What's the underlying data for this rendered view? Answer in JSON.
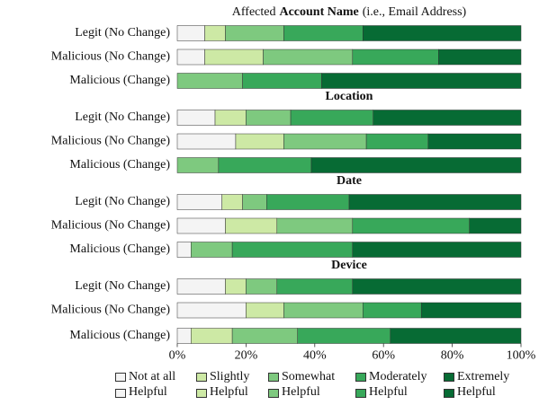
{
  "chart_data": [
    {
      "type": "stacked-bar",
      "title": [
        "Affected",
        "Account Name",
        "(i.e., Email Address)"
      ],
      "categories": [
        "Legit (No Change)",
        "Malicious (No Change)",
        "Malicious (Change)"
      ],
      "xlim": [
        0,
        100
      ],
      "series": [
        {
          "name": "Not at all Helpful",
          "color": "#f4f4f4",
          "values": [
            8,
            8,
            0
          ]
        },
        {
          "name": "Slightly Helpful",
          "color": "#cde9a5",
          "values": [
            6,
            17,
            0
          ]
        },
        {
          "name": "Somewhat Helpful",
          "color": "#7ec97f",
          "values": [
            17,
            26,
            19
          ]
        },
        {
          "name": "Moderately Helpful",
          "color": "#38a85a",
          "values": [
            23,
            25,
            23
          ]
        },
        {
          "name": "Extremely Helpful",
          "color": "#076b34",
          "values": [
            46,
            24,
            58
          ]
        }
      ]
    },
    {
      "type": "stacked-bar",
      "title": "Location",
      "categories": [
        "Legit (No Change)",
        "Malicious (No Change)",
        "Malicious (Change)"
      ],
      "xlim": [
        0,
        100
      ],
      "series": [
        {
          "name": "Not at all Helpful",
          "color": "#f4f4f4",
          "values": [
            11,
            17,
            0
          ]
        },
        {
          "name": "Slightly Helpful",
          "color": "#cde9a5",
          "values": [
            9,
            14,
            0
          ]
        },
        {
          "name": "Somewhat Helpful",
          "color": "#7ec97f",
          "values": [
            13,
            24,
            12
          ]
        },
        {
          "name": "Moderately Helpful",
          "color": "#38a85a",
          "values": [
            24,
            18,
            27
          ]
        },
        {
          "name": "Extremely Helpful",
          "color": "#076b34",
          "values": [
            43,
            27,
            61
          ]
        }
      ]
    },
    {
      "type": "stacked-bar",
      "title": "Date",
      "categories": [
        "Legit (No Change)",
        "Malicious (No Change)",
        "Malicious (Change)"
      ],
      "xlim": [
        0,
        100
      ],
      "series": [
        {
          "name": "Not at all Helpful",
          "color": "#f4f4f4",
          "values": [
            13,
            14,
            4
          ]
        },
        {
          "name": "Slightly Helpful",
          "color": "#cde9a5",
          "values": [
            6,
            15,
            0
          ]
        },
        {
          "name": "Somewhat Helpful",
          "color": "#7ec97f",
          "values": [
            7,
            22,
            12
          ]
        },
        {
          "name": "Moderately Helpful",
          "color": "#38a85a",
          "values": [
            24,
            34,
            35
          ]
        },
        {
          "name": "Extremely Helpful",
          "color": "#076b34",
          "values": [
            50,
            15,
            49
          ]
        }
      ]
    },
    {
      "type": "stacked-bar",
      "title": "Device",
      "categories": [
        "Legit (No Change)",
        "Malicious (No Change)",
        "Malicious (Change)"
      ],
      "xlim": [
        0,
        100
      ],
      "xticks": [
        {
          "value": 0,
          "label": "0%"
        },
        {
          "value": 20,
          "label": "20%"
        },
        {
          "value": 40,
          "label": "40%"
        },
        {
          "value": 60,
          "label": "60%"
        },
        {
          "value": 80,
          "label": "80%"
        },
        {
          "value": 100,
          "label": "100%"
        }
      ],
      "series": [
        {
          "name": "Not at all Helpful",
          "color": "#f4f4f4",
          "values": [
            14,
            20,
            4
          ]
        },
        {
          "name": "Slightly Helpful",
          "color": "#cde9a5",
          "values": [
            6,
            11,
            12
          ]
        },
        {
          "name": "Somewhat Helpful",
          "color": "#7ec97f",
          "values": [
            9,
            23,
            19
          ]
        },
        {
          "name": "Moderately Helpful",
          "color": "#38a85a",
          "values": [
            22,
            17,
            27
          ]
        },
        {
          "name": "Extremely Helpful",
          "color": "#076b34",
          "values": [
            49,
            29,
            38
          ]
        }
      ]
    }
  ]
}
